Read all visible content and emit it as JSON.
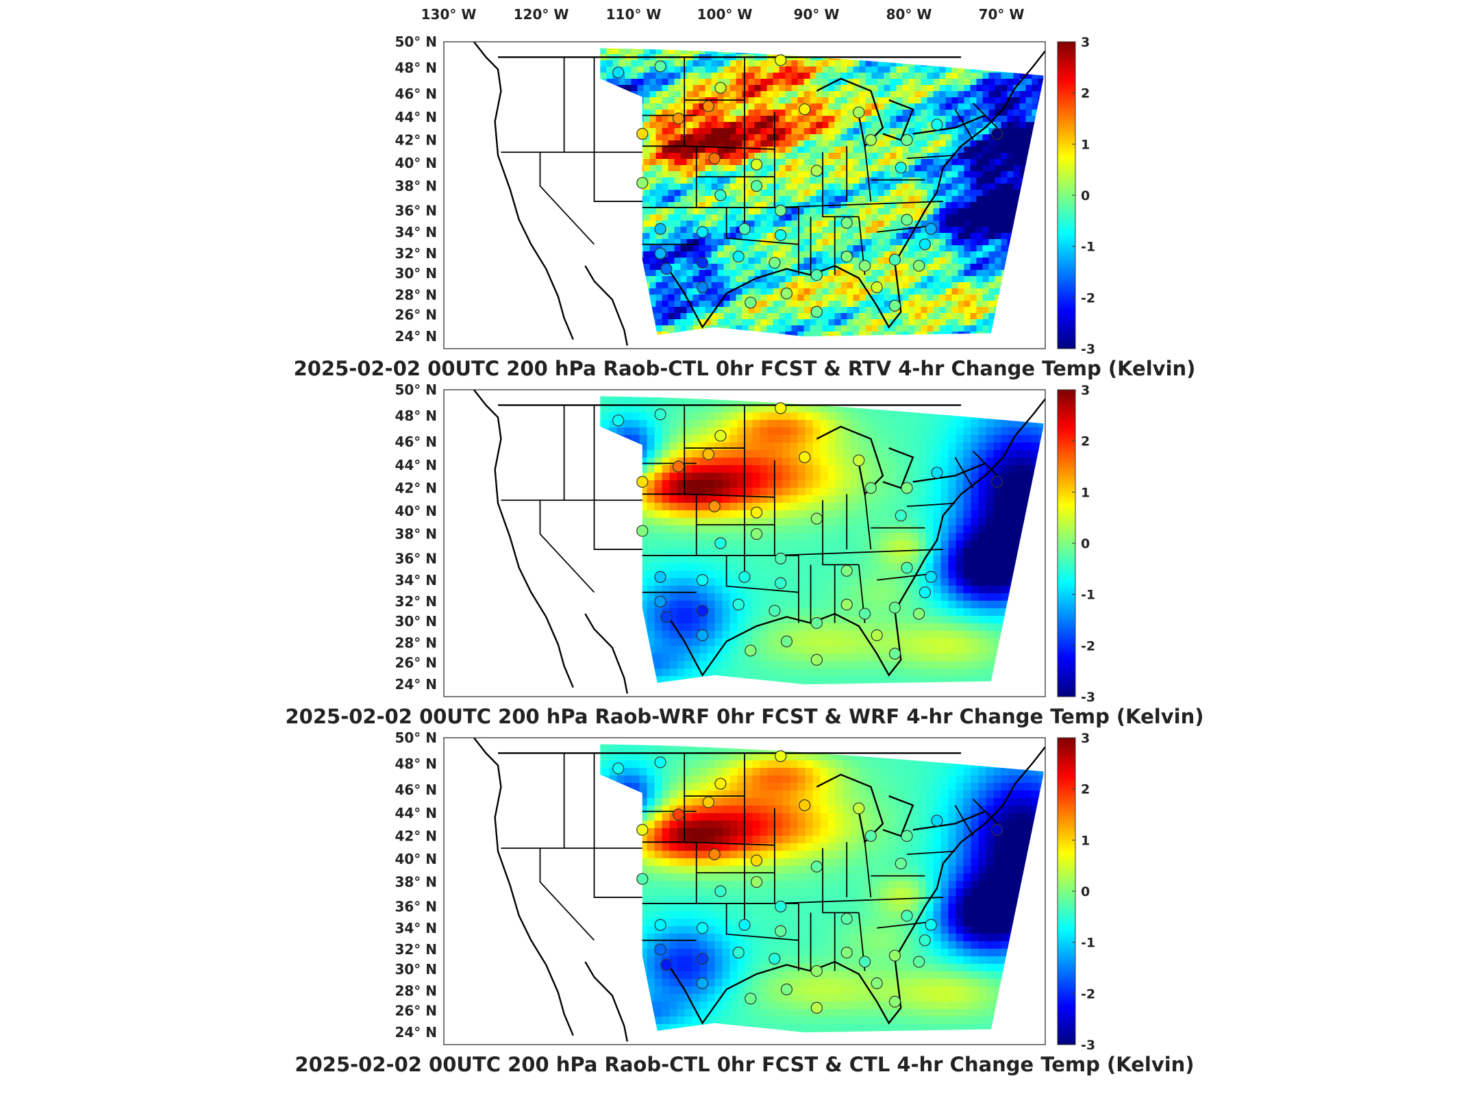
{
  "lon_labels": [
    "130",
    "120",
    "110",
    "100",
    "90",
    "80",
    "70"
  ],
  "lon_suffix": "W",
  "lat_labels": [
    "50",
    "48",
    "46",
    "44",
    "42",
    "40",
    "38",
    "36",
    "34",
    "32",
    "30",
    "28",
    "26",
    "24"
  ],
  "lat_suffix": "N",
  "degree_symbol": "°",
  "colorbar_ticks": [
    "3",
    "2",
    "1",
    "0",
    "-1",
    "-2",
    "-3"
  ],
  "colormap": [
    "#7f0000",
    "#ff0000",
    "#ff8000",
    "#ffff00",
    "#80ff80",
    "#00ffff",
    "#0080ff",
    "#0000ff",
    "#00007f"
  ],
  "panels": [
    {
      "title": "2025-02-02 00UTC 200 hPa Raob-CTL 0hr FCST & RTV 4-hr Change Temp (Kelvin)",
      "field": "noisy"
    },
    {
      "title": "2025-02-02 00UTC 200 hPa Raob-WRF 0hr FCST & WRF 4-hr Change Temp (Kelvin)",
      "field": "smooth"
    },
    {
      "title": "2025-02-02 00UTC 200 hPa Raob-CTL 0hr FCST & CTL 4-hr Change Temp (Kelvin)",
      "field": "smooth"
    }
  ]
}
